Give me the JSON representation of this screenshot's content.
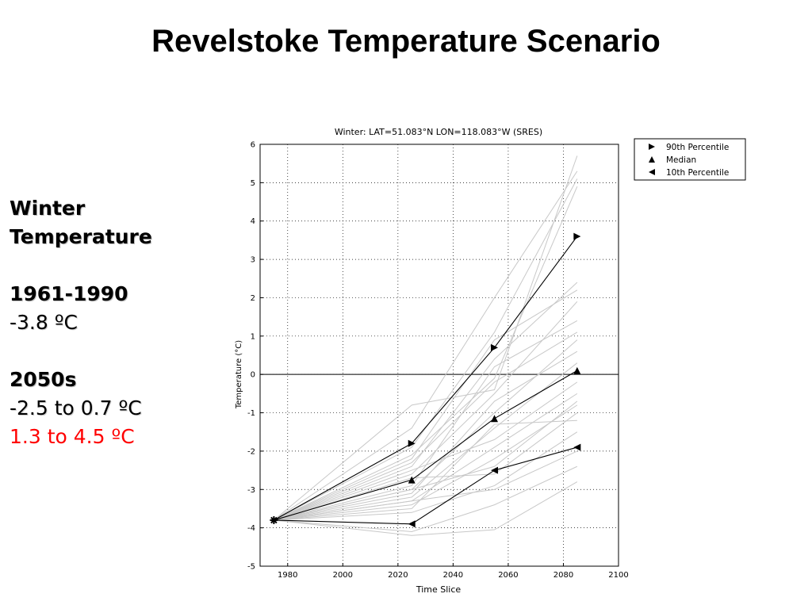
{
  "slide": {
    "title": "Revelstoke Temperature Scenario",
    "side_text": {
      "heading_line1": "Winter",
      "heading_line2": "Temperature",
      "baseline_period": "1961-1990",
      "baseline_value": "-3.8 ºC",
      "future_period": "2050s",
      "future_range_median": "-2.5 to 0.7 ºC",
      "future_range_upper": "1.3 to 4.5 ºC"
    },
    "colors": {
      "upper_range_text": "#ff0000",
      "gray_lines": "#c8c8c8",
      "marker_lines": "#000000"
    }
  },
  "chart_data": {
    "type": "line",
    "title": "Winter: LAT=51.083°N LON=118.083°W (SRES)",
    "xlabel": "Time Slice",
    "ylabel": "Temperature (°C)",
    "xlim": [
      1970,
      2100
    ],
    "ylim": [
      -5,
      6
    ],
    "xticks": [
      1980,
      2000,
      2020,
      2040,
      2060,
      2080,
      2100
    ],
    "yticks": [
      -5,
      -4,
      -3,
      -2,
      -1,
      0,
      1,
      2,
      3,
      4,
      5,
      6
    ],
    "grid": true,
    "zero_line": true,
    "legend_position": "outside-top-right",
    "legend": [
      {
        "label": "90th Percentile",
        "marker": "triangle-right"
      },
      {
        "label": "Median",
        "marker": "triangle-up"
      },
      {
        "label": "10th Percentile",
        "marker": "triangle-left"
      }
    ],
    "baseline_point": {
      "x": 1975,
      "y": -3.8
    },
    "series": [
      {
        "name": "90th Percentile",
        "marker": "triangle-right",
        "x": [
          1975,
          2025,
          2055,
          2085
        ],
        "y": [
          -3.8,
          -1.8,
          0.7,
          3.6
        ]
      },
      {
        "name": "Median",
        "marker": "triangle-up",
        "x": [
          1975,
          2025,
          2055,
          2085
        ],
        "y": [
          -3.8,
          -2.75,
          -1.15,
          0.1
        ]
      },
      {
        "name": "10th Percentile",
        "marker": "triangle-left",
        "x": [
          1975,
          2025,
          2055,
          2085
        ],
        "y": [
          -3.8,
          -3.9,
          -2.5,
          -1.9
        ]
      }
    ],
    "scenario_lines": {
      "x": [
        1975,
        2025,
        2055,
        2085
      ],
      "y": [
        [
          -3.8,
          -0.8,
          -0.4,
          5.7
        ],
        [
          -3.8,
          -1.4,
          2.0,
          5.3
        ],
        [
          -3.8,
          -1.9,
          1.1,
          5.1
        ],
        [
          -3.8,
          -2.1,
          -0.1,
          4.9
        ],
        [
          -3.8,
          -2.4,
          0.4,
          2.4
        ],
        [
          -3.8,
          -2.2,
          0.9,
          2.2
        ],
        [
          -3.8,
          -2.6,
          -0.5,
          1.9
        ],
        [
          -3.8,
          -2.9,
          0.2,
          1.4
        ],
        [
          -3.8,
          -3.0,
          -1.0,
          0.9
        ],
        [
          -3.8,
          -3.1,
          -0.7,
          0.6
        ],
        [
          -3.8,
          -3.2,
          -1.4,
          0.3
        ],
        [
          -3.8,
          -2.5,
          -1.7,
          -0.2
        ],
        [
          -3.8,
          -3.3,
          -1.9,
          -0.5
        ],
        [
          -3.8,
          -3.4,
          -2.2,
          -0.8
        ],
        [
          -3.8,
          -2.7,
          -2.6,
          -1.0
        ],
        [
          -3.8,
          -3.5,
          -1.3,
          -1.2
        ],
        [
          -3.8,
          -3.6,
          -2.9,
          -1.5
        ],
        [
          -3.8,
          -3.3,
          -3.0,
          -2.0
        ],
        [
          -3.8,
          -4.1,
          -3.4,
          -2.4
        ],
        [
          -3.8,
          -4.2,
          -4.05,
          -2.8
        ],
        [
          -3.8,
          -3.0,
          -2.4,
          -0.7
        ],
        [
          -3.8,
          -2.3,
          -0.2,
          1.1
        ]
      ]
    }
  }
}
